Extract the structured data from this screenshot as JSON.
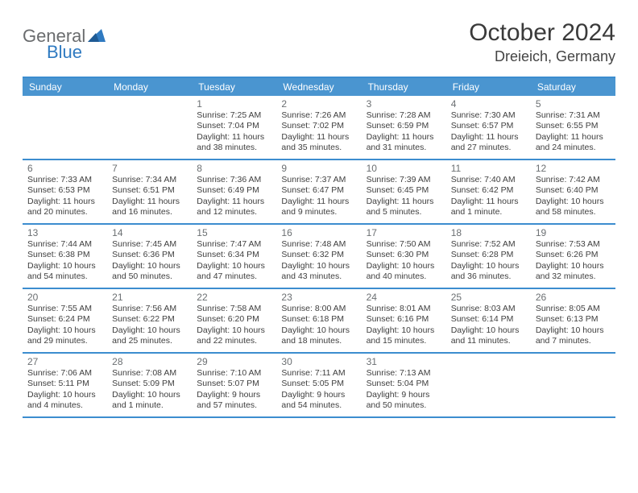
{
  "brand": {
    "word1": "General",
    "word2": "Blue",
    "color_word1": "#6a6c6e",
    "color_word2": "#2f7ac1",
    "icon_color": "#2f7ac1"
  },
  "title": "October 2024",
  "location": "Dreieich, Germany",
  "colors": {
    "header_bg": "#4a95d0",
    "header_text": "#ffffff",
    "rule": "#3c8dcf",
    "daynum": "#6b6f72",
    "body_text": "#3e3e3e",
    "page_bg": "#ffffff"
  },
  "daysOfWeek": [
    "Sunday",
    "Monday",
    "Tuesday",
    "Wednesday",
    "Thursday",
    "Friday",
    "Saturday"
  ],
  "weeks": [
    [
      null,
      null,
      {
        "n": "1",
        "sunrise": "7:25 AM",
        "sunset": "7:04 PM",
        "daylight": "11 hours and 38 minutes."
      },
      {
        "n": "2",
        "sunrise": "7:26 AM",
        "sunset": "7:02 PM",
        "daylight": "11 hours and 35 minutes."
      },
      {
        "n": "3",
        "sunrise": "7:28 AM",
        "sunset": "6:59 PM",
        "daylight": "11 hours and 31 minutes."
      },
      {
        "n": "4",
        "sunrise": "7:30 AM",
        "sunset": "6:57 PM",
        "daylight": "11 hours and 27 minutes."
      },
      {
        "n": "5",
        "sunrise": "7:31 AM",
        "sunset": "6:55 PM",
        "daylight": "11 hours and 24 minutes."
      }
    ],
    [
      {
        "n": "6",
        "sunrise": "7:33 AM",
        "sunset": "6:53 PM",
        "daylight": "11 hours and 20 minutes."
      },
      {
        "n": "7",
        "sunrise": "7:34 AM",
        "sunset": "6:51 PM",
        "daylight": "11 hours and 16 minutes."
      },
      {
        "n": "8",
        "sunrise": "7:36 AM",
        "sunset": "6:49 PM",
        "daylight": "11 hours and 12 minutes."
      },
      {
        "n": "9",
        "sunrise": "7:37 AM",
        "sunset": "6:47 PM",
        "daylight": "11 hours and 9 minutes."
      },
      {
        "n": "10",
        "sunrise": "7:39 AM",
        "sunset": "6:45 PM",
        "daylight": "11 hours and 5 minutes."
      },
      {
        "n": "11",
        "sunrise": "7:40 AM",
        "sunset": "6:42 PM",
        "daylight": "11 hours and 1 minute."
      },
      {
        "n": "12",
        "sunrise": "7:42 AM",
        "sunset": "6:40 PM",
        "daylight": "10 hours and 58 minutes."
      }
    ],
    [
      {
        "n": "13",
        "sunrise": "7:44 AM",
        "sunset": "6:38 PM",
        "daylight": "10 hours and 54 minutes."
      },
      {
        "n": "14",
        "sunrise": "7:45 AM",
        "sunset": "6:36 PM",
        "daylight": "10 hours and 50 minutes."
      },
      {
        "n": "15",
        "sunrise": "7:47 AM",
        "sunset": "6:34 PM",
        "daylight": "10 hours and 47 minutes."
      },
      {
        "n": "16",
        "sunrise": "7:48 AM",
        "sunset": "6:32 PM",
        "daylight": "10 hours and 43 minutes."
      },
      {
        "n": "17",
        "sunrise": "7:50 AM",
        "sunset": "6:30 PM",
        "daylight": "10 hours and 40 minutes."
      },
      {
        "n": "18",
        "sunrise": "7:52 AM",
        "sunset": "6:28 PM",
        "daylight": "10 hours and 36 minutes."
      },
      {
        "n": "19",
        "sunrise": "7:53 AM",
        "sunset": "6:26 PM",
        "daylight": "10 hours and 32 minutes."
      }
    ],
    [
      {
        "n": "20",
        "sunrise": "7:55 AM",
        "sunset": "6:24 PM",
        "daylight": "10 hours and 29 minutes."
      },
      {
        "n": "21",
        "sunrise": "7:56 AM",
        "sunset": "6:22 PM",
        "daylight": "10 hours and 25 minutes."
      },
      {
        "n": "22",
        "sunrise": "7:58 AM",
        "sunset": "6:20 PM",
        "daylight": "10 hours and 22 minutes."
      },
      {
        "n": "23",
        "sunrise": "8:00 AM",
        "sunset": "6:18 PM",
        "daylight": "10 hours and 18 minutes."
      },
      {
        "n": "24",
        "sunrise": "8:01 AM",
        "sunset": "6:16 PM",
        "daylight": "10 hours and 15 minutes."
      },
      {
        "n": "25",
        "sunrise": "8:03 AM",
        "sunset": "6:14 PM",
        "daylight": "10 hours and 11 minutes."
      },
      {
        "n": "26",
        "sunrise": "8:05 AM",
        "sunset": "6:13 PM",
        "daylight": "10 hours and 7 minutes."
      }
    ],
    [
      {
        "n": "27",
        "sunrise": "7:06 AM",
        "sunset": "5:11 PM",
        "daylight": "10 hours and 4 minutes."
      },
      {
        "n": "28",
        "sunrise": "7:08 AM",
        "sunset": "5:09 PM",
        "daylight": "10 hours and 1 minute."
      },
      {
        "n": "29",
        "sunrise": "7:10 AM",
        "sunset": "5:07 PM",
        "daylight": "9 hours and 57 minutes."
      },
      {
        "n": "30",
        "sunrise": "7:11 AM",
        "sunset": "5:05 PM",
        "daylight": "9 hours and 54 minutes."
      },
      {
        "n": "31",
        "sunrise": "7:13 AM",
        "sunset": "5:04 PM",
        "daylight": "9 hours and 50 minutes."
      },
      null,
      null
    ]
  ]
}
